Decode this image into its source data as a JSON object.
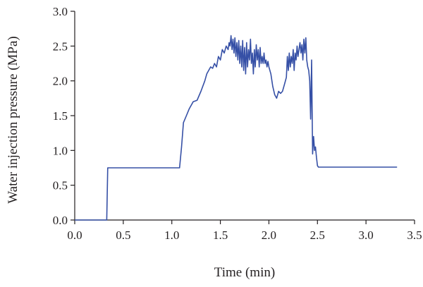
{
  "colors": {
    "series": "#3650a6",
    "axis": "#231f20"
  },
  "chart_data": {
    "type": "line",
    "xlabel": "Time (min)",
    "ylabel": "Water injection pressure (MPa)",
    "xlim": [
      0,
      3.5
    ],
    "ylim": [
      0,
      3.0
    ],
    "xticks": [
      "0.0",
      "0.5",
      "1.0",
      "1.5",
      "2.0",
      "2.5",
      "3.0",
      "3.5"
    ],
    "yticks": [
      "0.0",
      "0.5",
      "1.0",
      "1.5",
      "2.0",
      "2.5",
      "3.0"
    ],
    "grid": false,
    "legend": "none",
    "series": [
      {
        "x": [
          0.0,
          0.33,
          0.34,
          1.08,
          1.1,
          1.12,
          1.15,
          1.18,
          1.22,
          1.26,
          1.3,
          1.34,
          1.36,
          1.38,
          1.4,
          1.42,
          1.44,
          1.46,
          1.48,
          1.5,
          1.52,
          1.54,
          1.56,
          1.58,
          1.59,
          1.6,
          1.61,
          1.62,
          1.63,
          1.64,
          1.65,
          1.66,
          1.67,
          1.68,
          1.69,
          1.7,
          1.71,
          1.72,
          1.73,
          1.74,
          1.75,
          1.76,
          1.77,
          1.78,
          1.79,
          1.8,
          1.81,
          1.82,
          1.83,
          1.84,
          1.85,
          1.86,
          1.87,
          1.88,
          1.89,
          1.9,
          1.91,
          1.92,
          1.93,
          1.94,
          1.95,
          1.96,
          1.97,
          1.98,
          1.99,
          2.0,
          2.02,
          2.04,
          2.06,
          2.08,
          2.1,
          2.12,
          2.14,
          2.16,
          2.18,
          2.19,
          2.2,
          2.21,
          2.22,
          2.23,
          2.24,
          2.25,
          2.26,
          2.27,
          2.28,
          2.29,
          2.3,
          2.31,
          2.32,
          2.33,
          2.34,
          2.35,
          2.36,
          2.37,
          2.38,
          2.39,
          2.4,
          2.41,
          2.42,
          2.43,
          2.44,
          2.45,
          2.46,
          2.47,
          2.48,
          2.49,
          2.5,
          2.51,
          2.52,
          2.53,
          2.54,
          2.55,
          2.6,
          3.0,
          3.32
        ],
        "y": [
          0.0,
          0.0,
          0.75,
          0.75,
          1.05,
          1.4,
          1.5,
          1.6,
          1.7,
          1.72,
          1.85,
          2.0,
          2.1,
          2.15,
          2.2,
          2.18,
          2.25,
          2.2,
          2.35,
          2.3,
          2.45,
          2.4,
          2.5,
          2.45,
          2.55,
          2.5,
          2.65,
          2.45,
          2.6,
          2.4,
          2.62,
          2.35,
          2.55,
          2.3,
          2.58,
          2.25,
          2.5,
          2.2,
          2.58,
          2.15,
          2.48,
          2.1,
          2.55,
          2.2,
          2.45,
          2.3,
          2.6,
          2.25,
          2.4,
          2.1,
          2.45,
          2.2,
          2.52,
          2.3,
          2.45,
          2.2,
          2.48,
          2.25,
          2.35,
          2.25,
          2.4,
          2.25,
          2.3,
          2.2,
          2.28,
          2.2,
          2.1,
          1.92,
          1.8,
          1.75,
          1.85,
          1.82,
          1.85,
          1.95,
          2.05,
          2.35,
          2.15,
          2.4,
          2.2,
          2.35,
          2.25,
          2.45,
          2.15,
          2.4,
          2.3,
          2.5,
          2.35,
          2.45,
          2.55,
          2.4,
          2.52,
          2.3,
          2.6,
          2.4,
          2.62,
          2.3,
          2.2,
          2.15,
          2.0,
          1.45,
          2.3,
          0.95,
          1.2,
          1.0,
          1.05,
          0.9,
          0.78,
          0.76,
          0.76,
          0.76,
          0.76,
          0.76,
          0.76,
          0.76,
          0.76
        ]
      }
    ]
  }
}
